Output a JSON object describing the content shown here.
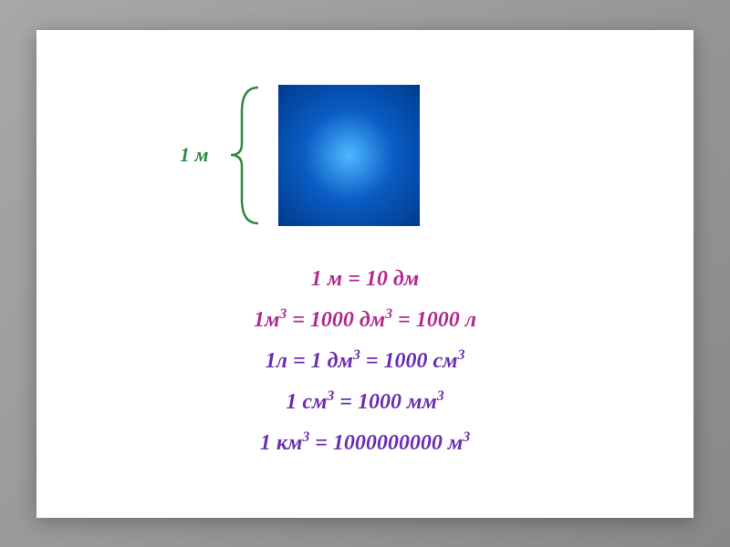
{
  "brace": {
    "label": "1 м",
    "label_color": "#2d8a3e",
    "stroke_color": "#2d8a3e"
  },
  "cube": {
    "gradient_inner": "#4db8ff",
    "gradient_mid": "#0a5cc4",
    "gradient_outer": "#003a8c"
  },
  "equations": [
    {
      "parts": [
        "1 м = 10 дм"
      ],
      "sup": [],
      "color": "#b02a8f"
    },
    {
      "parts": [
        "1м",
        "3",
        " = 1000 дм",
        "3",
        " = 1000 л"
      ],
      "sup": [
        1,
        3
      ],
      "color": "#b02a8f"
    },
    {
      "parts": [
        "1л = 1 дм",
        "3",
        " = 1000 см",
        "3"
      ],
      "sup": [
        1,
        3
      ],
      "color": "#6a2fb0"
    },
    {
      "parts": [
        "1 см",
        "3",
        " = 1000 мм",
        "3"
      ],
      "sup": [
        1,
        3
      ],
      "color": "#6a2fb0"
    },
    {
      "parts": [
        "1 км",
        "3",
        " = 1000000000 м",
        "3"
      ],
      "sup": [
        1,
        3
      ],
      "color": "#6a2fb0"
    }
  ],
  "colors": {
    "background_outer": "#9a9a9a",
    "slide_bg": "#ffffff"
  },
  "typography": {
    "eq_fontsize": 24,
    "brace_label_fontsize": 22,
    "font_family": "Georgia"
  }
}
